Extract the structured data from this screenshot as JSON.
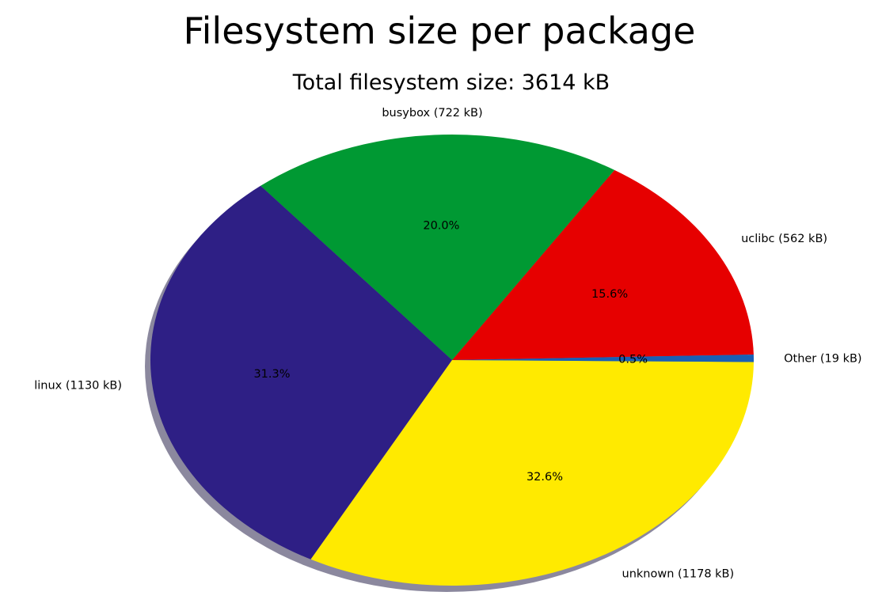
{
  "chart_data": {
    "type": "pie",
    "title": "Filesystem size per package",
    "subtitle": "Total filesystem size: 3614 kB",
    "slices": [
      {
        "label": "uclibc (562 kB)",
        "pct_label": "15.6%",
        "value": 562,
        "color": "#e60000"
      },
      {
        "label": "busybox (722 kB)",
        "pct_label": "20.0%",
        "value": 722,
        "color": "#009933"
      },
      {
        "label": "linux (1130 kB)",
        "pct_label": "31.3%",
        "value": 1130,
        "color": "#2e1f85"
      },
      {
        "label": "unknown (1178 kB)",
        "pct_label": "32.6%",
        "value": 1178,
        "color": "#ffea00"
      },
      {
        "label": "Other (19 kB)",
        "pct_label": "0.5%",
        "value": 19,
        "color": "#1a5fb4"
      }
    ],
    "shadow": true
  }
}
